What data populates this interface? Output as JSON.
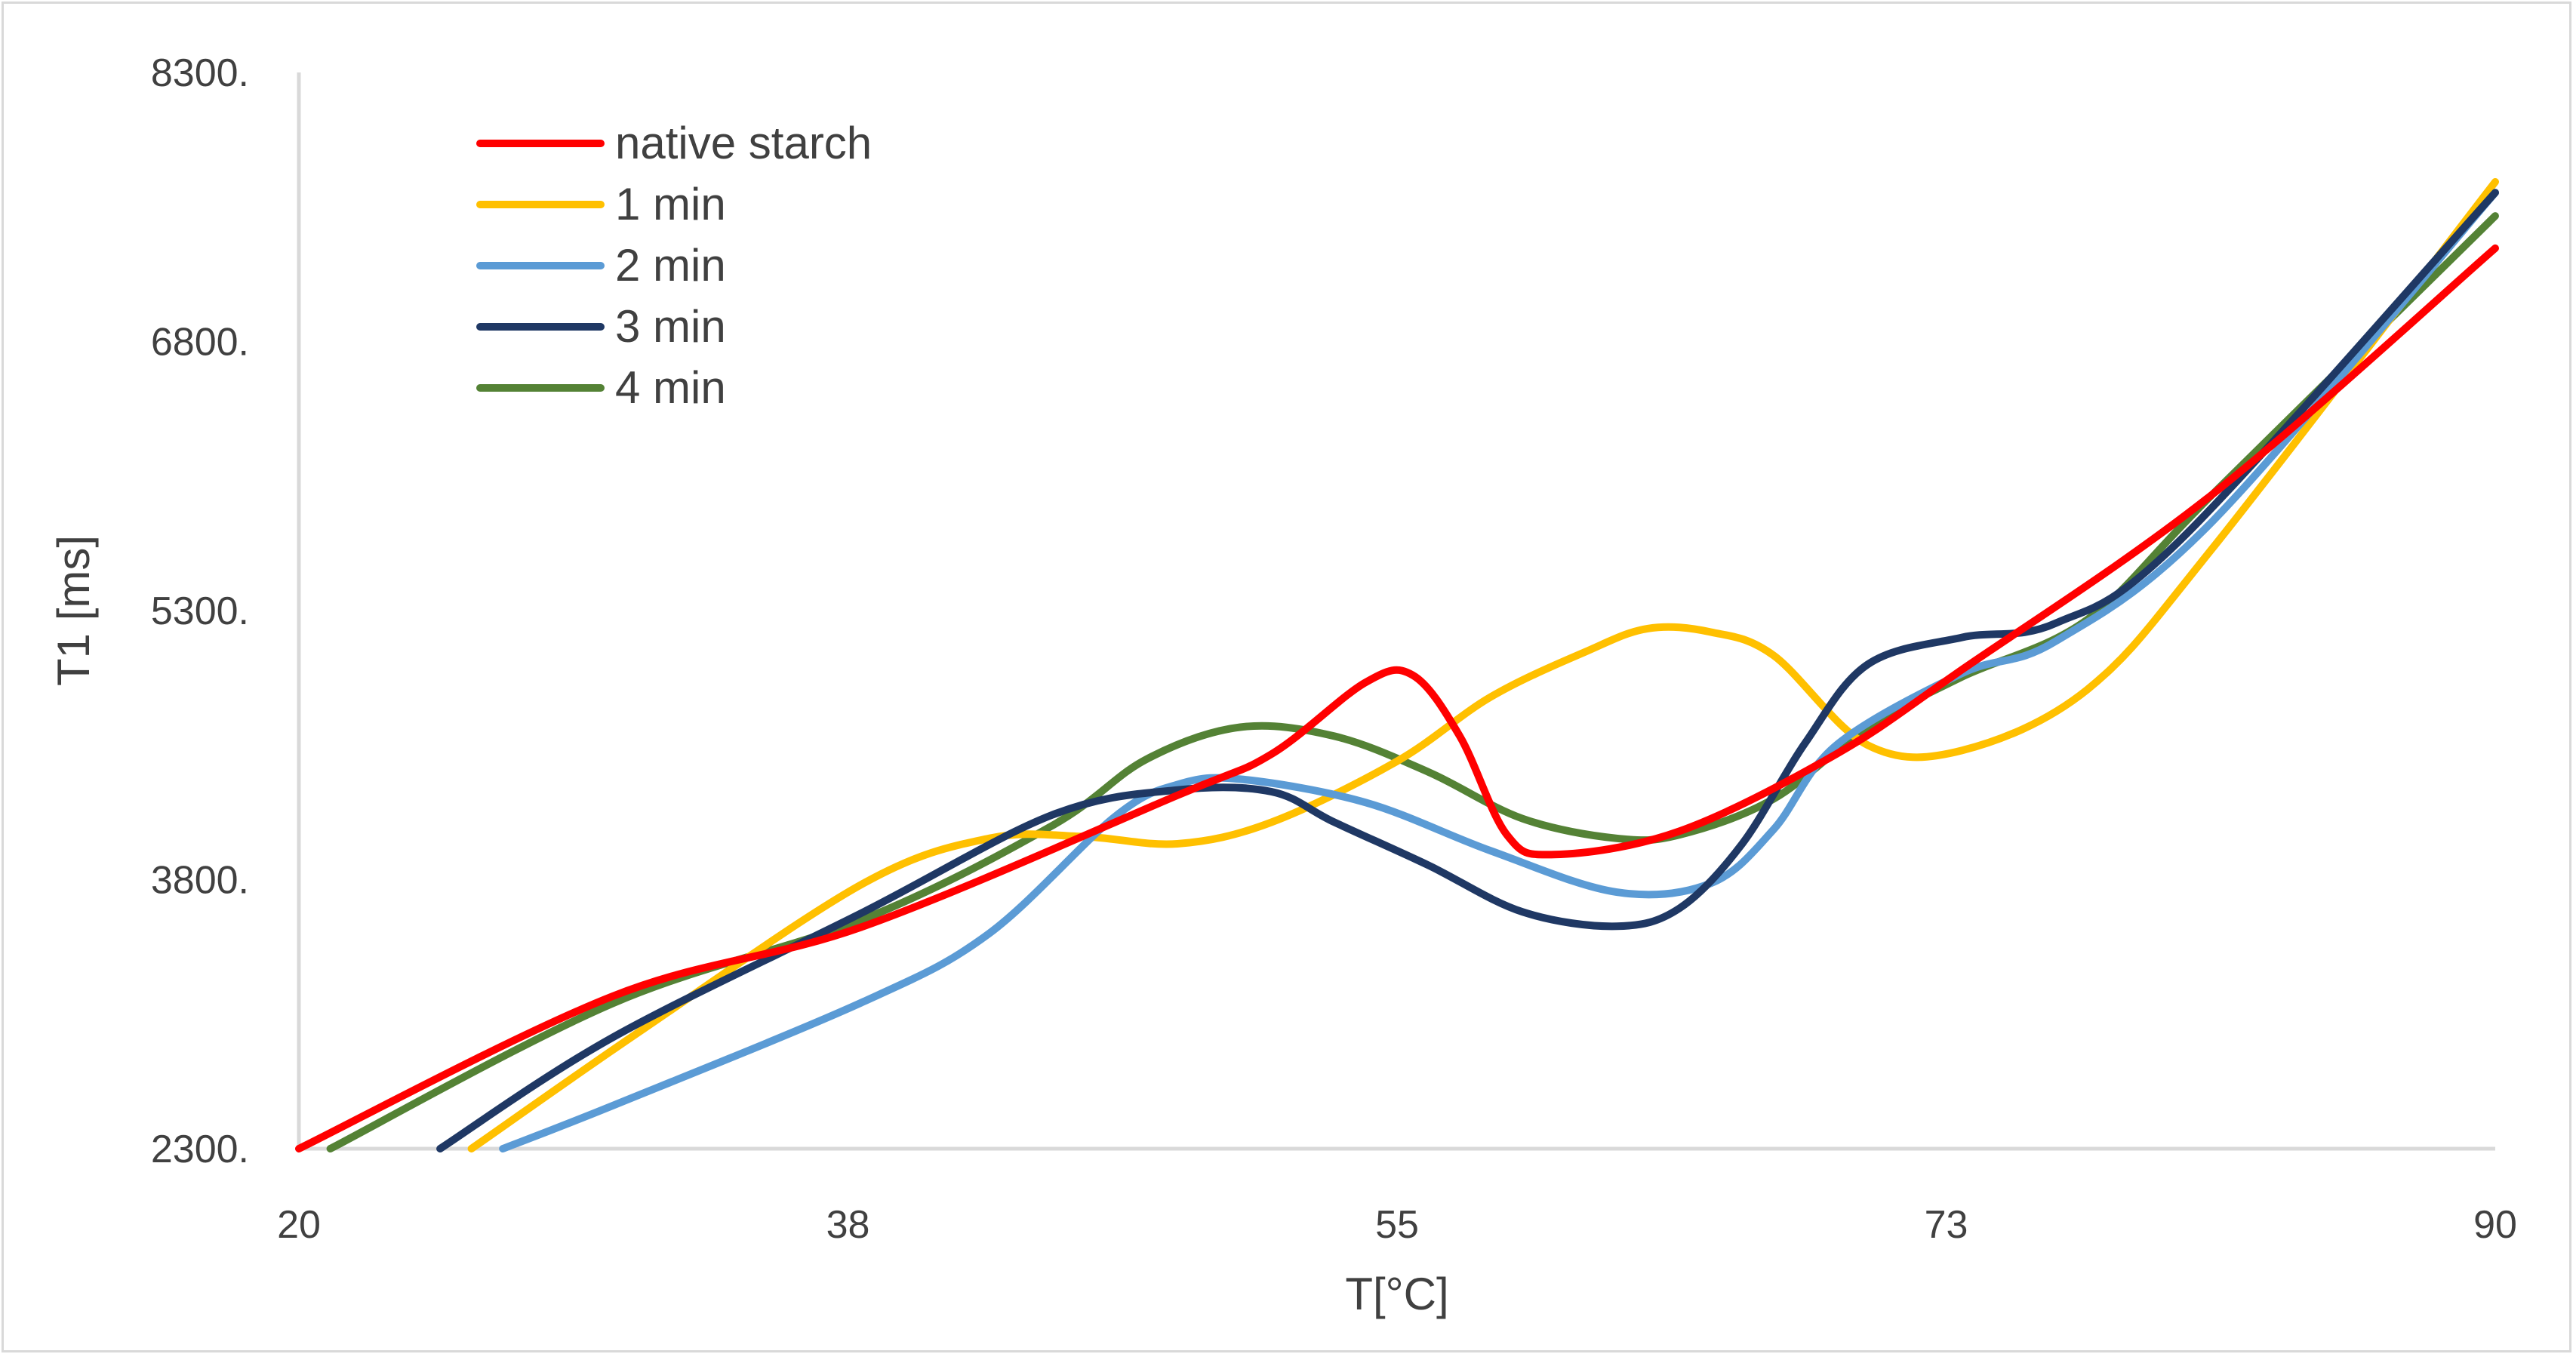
{
  "chart_data": {
    "type": "line",
    "title": "",
    "xlabel": "T[°C]",
    "ylabel": "T1 [ms]",
    "xlim": [
      20,
      90
    ],
    "ylim": [
      2300,
      8300
    ],
    "x_ticks": [
      "20",
      "38",
      "55",
      "73",
      "90"
    ],
    "y_ticks": [
      "2300.",
      "3800.",
      "5300.",
      "6800.",
      "8300."
    ],
    "legend_position": "top-left",
    "grid": false,
    "series": [
      {
        "name": "native starch",
        "color": "#FF0000",
        "points": [
          [
            20,
            2300
          ],
          [
            30,
            3150
          ],
          [
            38,
            3540
          ],
          [
            48,
            4270
          ],
          [
            51,
            4500
          ],
          [
            54,
            4900
          ],
          [
            55.5,
            4940
          ],
          [
            57,
            4600
          ],
          [
            58.5,
            4050
          ],
          [
            60,
            3940
          ],
          [
            64,
            4070
          ],
          [
            69,
            4500
          ],
          [
            73,
            4970
          ],
          [
            81,
            5950
          ],
          [
            90,
            7320
          ]
        ]
      },
      {
        "name": "1 min",
        "color": "#FFC000",
        "points": [
          [
            25.5,
            2300
          ],
          [
            31,
            2970
          ],
          [
            38,
            3780
          ],
          [
            42,
            4030
          ],
          [
            45,
            4040
          ],
          [
            48,
            4000
          ],
          [
            51,
            4120
          ],
          [
            55,
            4460
          ],
          [
            58,
            4820
          ],
          [
            61,
            5070
          ],
          [
            63,
            5200
          ],
          [
            65,
            5180
          ],
          [
            67,
            5050
          ],
          [
            70,
            4550
          ],
          [
            73,
            4520
          ],
          [
            77,
            4860
          ],
          [
            81,
            5650
          ],
          [
            90,
            7690
          ]
        ]
      },
      {
        "name": "2 min",
        "color": "#5B9BD5",
        "points": [
          [
            26.5,
            2300
          ],
          [
            30,
            2540
          ],
          [
            38,
            3120
          ],
          [
            42,
            3500
          ],
          [
            46,
            4150
          ],
          [
            48,
            4330
          ],
          [
            50,
            4360
          ],
          [
            54,
            4230
          ],
          [
            58,
            3960
          ],
          [
            62,
            3730
          ],
          [
            65,
            3780
          ],
          [
            67,
            4080
          ],
          [
            69,
            4550
          ],
          [
            73,
            4950
          ],
          [
            76,
            5130
          ],
          [
            81,
            5800
          ],
          [
            90,
            7630
          ]
        ]
      },
      {
        "name": "3 min",
        "color": "#1F3864",
        "points": [
          [
            24.5,
            2300
          ],
          [
            30,
            2920
          ],
          [
            38,
            3620
          ],
          [
            44,
            4160
          ],
          [
            48,
            4300
          ],
          [
            51,
            4290
          ],
          [
            53,
            4120
          ],
          [
            56,
            3880
          ],
          [
            59,
            3620
          ],
          [
            62,
            3540
          ],
          [
            64,
            3640
          ],
          [
            66,
            4000
          ],
          [
            68,
            4560
          ],
          [
            70,
            5000
          ],
          [
            73,
            5150
          ],
          [
            76,
            5230
          ],
          [
            80,
            5700
          ],
          [
            90,
            7630
          ]
        ]
      },
      {
        "name": "4 min",
        "color": "#548235",
        "points": [
          [
            21,
            2300
          ],
          [
            30,
            3110
          ],
          [
            38,
            3580
          ],
          [
            44,
            4100
          ],
          [
            47,
            4470
          ],
          [
            50,
            4650
          ],
          [
            53,
            4600
          ],
          [
            56,
            4400
          ],
          [
            59,
            4140
          ],
          [
            62,
            4030
          ],
          [
            64,
            4050
          ],
          [
            67,
            4250
          ],
          [
            70,
            4650
          ],
          [
            73,
            4930
          ],
          [
            77,
            5250
          ],
          [
            81,
            5950
          ],
          [
            90,
            7500
          ]
        ]
      }
    ]
  }
}
